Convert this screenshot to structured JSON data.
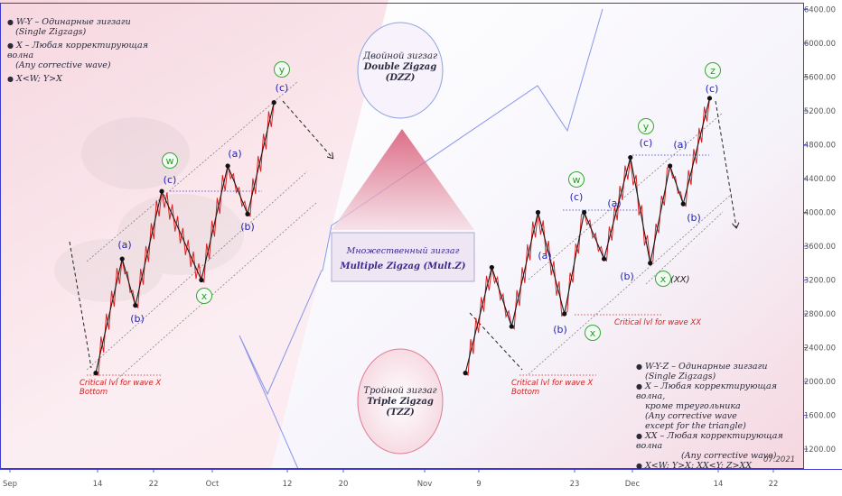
{
  "chart_data": {
    "type": "line",
    "price_axis": {
      "ticks": [
        "6400.00",
        "6000.00",
        "5600.00",
        "5200.00",
        "4800.00",
        "4400.00",
        "4000.00",
        "3600.00",
        "3200.00",
        "2800.00",
        "2400.00",
        "2000.00",
        "1600.00",
        "1200.00"
      ],
      "min": 1000,
      "max": 6500
    },
    "time_axis": {
      "labels": [
        "Sep",
        "14",
        "22",
        "Oct",
        "12",
        "20",
        "Nov",
        "9",
        "23",
        "Dec",
        "14",
        "22"
      ]
    },
    "series": [
      {
        "points": [
          {
            "x": "Sep 14",
            "y": 2100
          },
          {
            "x": "Sep 18",
            "y": 3450
          },
          {
            "x": "Sep 20",
            "y": 2900
          },
          {
            "x": "Sep 24",
            "y": 4250
          },
          {
            "x": "Sep 30",
            "y": 3200
          },
          {
            "x": "Oct 4",
            "y": 4550
          },
          {
            "x": "Oct 7",
            "y": 3980
          },
          {
            "x": "Oct 11",
            "y": 5300
          }
        ]
      },
      {
        "points": [
          {
            "x": "Nov 9",
            "y": 2100
          },
          {
            "x": "Nov 13",
            "y": 3350
          },
          {
            "x": "Nov 16",
            "y": 2650
          },
          {
            "x": "Nov 20",
            "y": 4000
          },
          {
            "x": "Nov 24",
            "y": 2800
          },
          {
            "x": "Nov 27",
            "y": 4000
          },
          {
            "x": "Nov 30",
            "y": 3450
          },
          {
            "x": "Dec 4",
            "y": 4650
          },
          {
            "x": "Dec 7",
            "y": 3400
          },
          {
            "x": "Dec 10",
            "y": 4550
          },
          {
            "x": "Dec 12",
            "y": 4100
          },
          {
            "x": "Dec 16",
            "y": 5350
          }
        ]
      }
    ]
  },
  "colors": {
    "zigzag": "#e02020",
    "pivot_line": "#1a1a1a",
    "wave_label": "#2424b8",
    "wave_circle": "#3aa33a",
    "critical": "#d02020",
    "axis": "#4a4ad0",
    "axis_text": "#555555"
  },
  "left_notes": {
    "line1": "W-Y – Одинарные зигзаги",
    "line2": "(Single Zigzags)",
    "line3": "X – Любая корректирующая волна",
    "line4": "(Any corrective wave)",
    "line5": "X<W; Y>X"
  },
  "right_notes": {
    "line1": "W-Y-Z  – Одинарные зигзаги",
    "line2": "(Single Zigzags)",
    "line3": "X – Любая корректирующая волна,",
    "line4": "кроме треугольника",
    "line5": "(Any corrective wave",
    "line6": "except for the triangle)",
    "line7": "XX – Любая корректирующая волна",
    "line8": "(Any corrective wave)",
    "line9": "X<W; Y>X; XX<Y; Z>XX"
  },
  "double_zigzag": {
    "ru": "Двойной зигзаг",
    "en": "Double Zigzag",
    "abbr": "(DZZ)"
  },
  "triple_zigzag": {
    "ru": "Тройной зигзаг",
    "en": "Triple Zigzag",
    "abbr": "(TZZ)"
  },
  "multiple_zigzag": {
    "ru": "Множественный зигзаг",
    "en": "Multiple Zigzag (Mult.Z)"
  },
  "critical_left": {
    "l1": "Critical lvl for wave X",
    "l2": "Bottom"
  },
  "critical_right": {
    "l1": "Critical lvl for wave X",
    "l2": "Bottom"
  },
  "critical_xx": "Critical lvl for wave XX",
  "wave_labels": {
    "a": "(a)",
    "b": "(b)",
    "c": "(c)",
    "w": "w",
    "x": "x",
    "y": "y",
    "z": "z",
    "xx": "(XX)"
  },
  "date_stamp": "07.2021"
}
